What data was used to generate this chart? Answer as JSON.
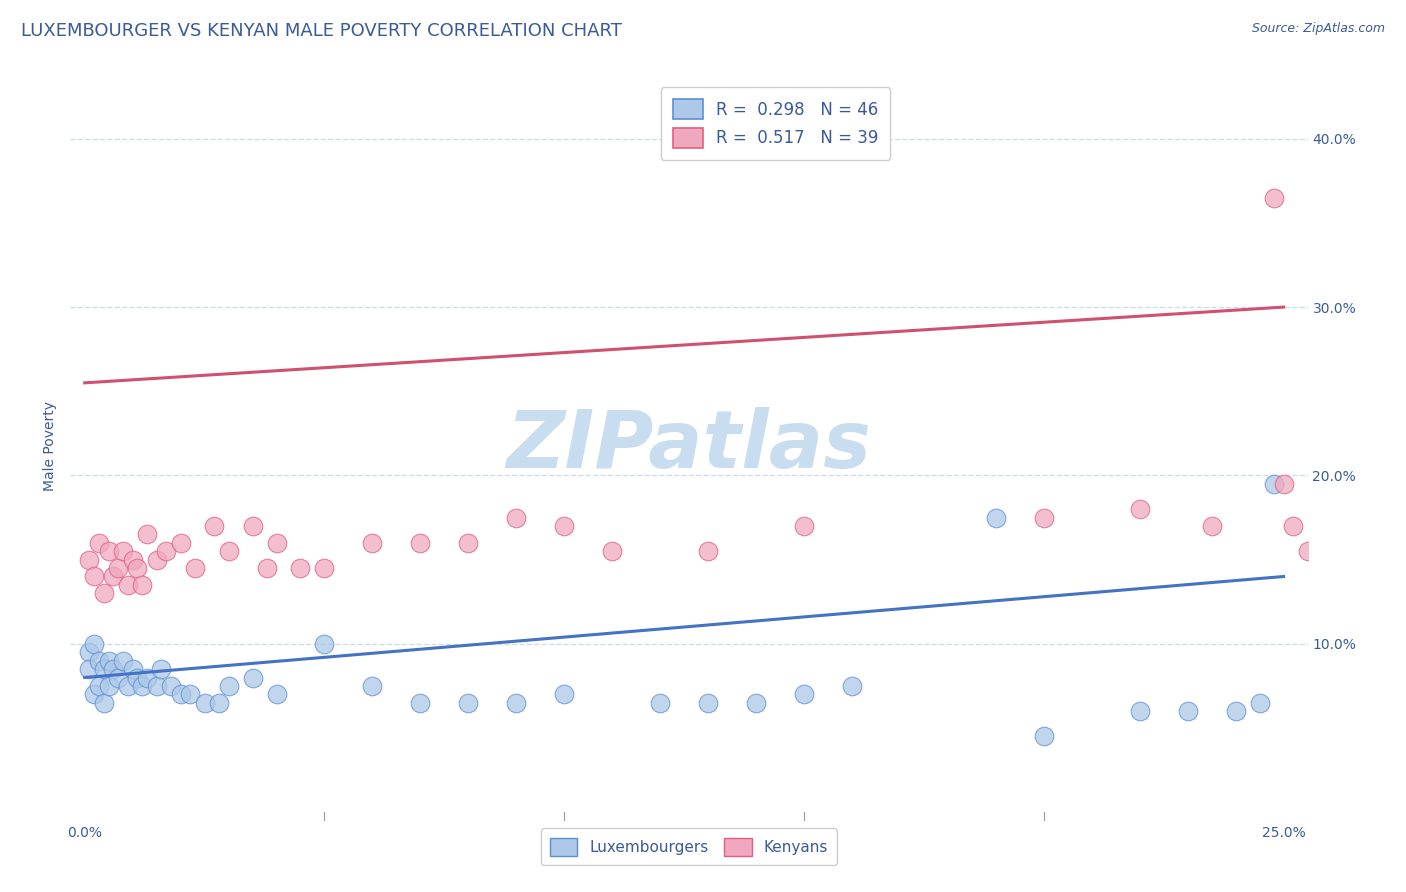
{
  "title": "LUXEMBOURGER VS KENYAN MALE POVERTY CORRELATION CHART",
  "source_text": "Source: ZipAtlas.com",
  "ylabel": "Male Poverty",
  "xlim": [
    -0.003,
    0.255
  ],
  "ylim": [
    -0.005,
    0.44
  ],
  "x_ticks": [
    0.0,
    0.05,
    0.1,
    0.15,
    0.2,
    0.25
  ],
  "x_tick_labels": [
    "0.0%",
    "",
    "",
    "",
    "",
    "25.0%"
  ],
  "y_ticks": [
    0.1,
    0.2,
    0.3,
    0.4
  ],
  "y_tick_labels": [
    "10.0%",
    "20.0%",
    "30.0%",
    "40.0%"
  ],
  "lux_color": "#adc8e8",
  "ken_color": "#f0a8be",
  "lux_edge_color": "#5b8fd4",
  "ken_edge_color": "#e06080",
  "lux_line_color": "#4472c4",
  "ken_line_color": "#d05070",
  "legend_r_lux": "0.298",
  "legend_n_lux": "46",
  "legend_r_ken": "0.517",
  "legend_n_ken": "39",
  "watermark": "ZIPatlas",
  "watermark_color": "#c8ddf0",
  "lux_x": [
    0.001,
    0.001,
    0.002,
    0.002,
    0.003,
    0.003,
    0.004,
    0.004,
    0.005,
    0.005,
    0.006,
    0.007,
    0.008,
    0.009,
    0.01,
    0.011,
    0.012,
    0.013,
    0.015,
    0.016,
    0.018,
    0.02,
    0.022,
    0.025,
    0.028,
    0.03,
    0.035,
    0.04,
    0.05,
    0.06,
    0.07,
    0.08,
    0.09,
    0.1,
    0.12,
    0.13,
    0.14,
    0.15,
    0.16,
    0.19,
    0.2,
    0.22,
    0.23,
    0.24,
    0.245,
    0.248
  ],
  "lux_y": [
    0.095,
    0.085,
    0.1,
    0.07,
    0.09,
    0.075,
    0.085,
    0.065,
    0.09,
    0.075,
    0.085,
    0.08,
    0.09,
    0.075,
    0.085,
    0.08,
    0.075,
    0.08,
    0.075,
    0.085,
    0.075,
    0.07,
    0.07,
    0.065,
    0.065,
    0.075,
    0.08,
    0.07,
    0.1,
    0.075,
    0.065,
    0.065,
    0.065,
    0.07,
    0.065,
    0.065,
    0.065,
    0.07,
    0.075,
    0.175,
    0.045,
    0.06,
    0.06,
    0.06,
    0.065,
    0.195
  ],
  "ken_x": [
    0.001,
    0.002,
    0.003,
    0.004,
    0.005,
    0.006,
    0.007,
    0.008,
    0.009,
    0.01,
    0.011,
    0.012,
    0.013,
    0.015,
    0.017,
    0.02,
    0.023,
    0.027,
    0.03,
    0.035,
    0.038,
    0.04,
    0.045,
    0.05,
    0.06,
    0.07,
    0.08,
    0.09,
    0.1,
    0.11,
    0.13,
    0.15,
    0.2,
    0.22,
    0.235,
    0.248,
    0.25,
    0.252,
    0.255
  ],
  "ken_y": [
    0.15,
    0.14,
    0.16,
    0.13,
    0.155,
    0.14,
    0.145,
    0.155,
    0.135,
    0.15,
    0.145,
    0.135,
    0.165,
    0.15,
    0.155,
    0.16,
    0.145,
    0.17,
    0.155,
    0.17,
    0.145,
    0.16,
    0.145,
    0.145,
    0.16,
    0.16,
    0.16,
    0.175,
    0.17,
    0.155,
    0.155,
    0.17,
    0.175,
    0.18,
    0.17,
    0.365,
    0.195,
    0.17,
    0.155
  ],
  "lux_trend_x": [
    0.0,
    0.25
  ],
  "lux_trend_y": [
    0.08,
    0.14
  ],
  "ken_trend_x": [
    0.0,
    0.25
  ],
  "ken_trend_y": [
    0.255,
    0.3
  ],
  "background_color": "#ffffff",
  "grid_color": "#ccddee",
  "title_color": "#3a5a9a",
  "axis_color": "#3a5a9a",
  "tick_color": "#3a5a9a",
  "title_fontsize": 13,
  "label_fontsize": 10,
  "tick_fontsize": 10,
  "marker_size": 180
}
